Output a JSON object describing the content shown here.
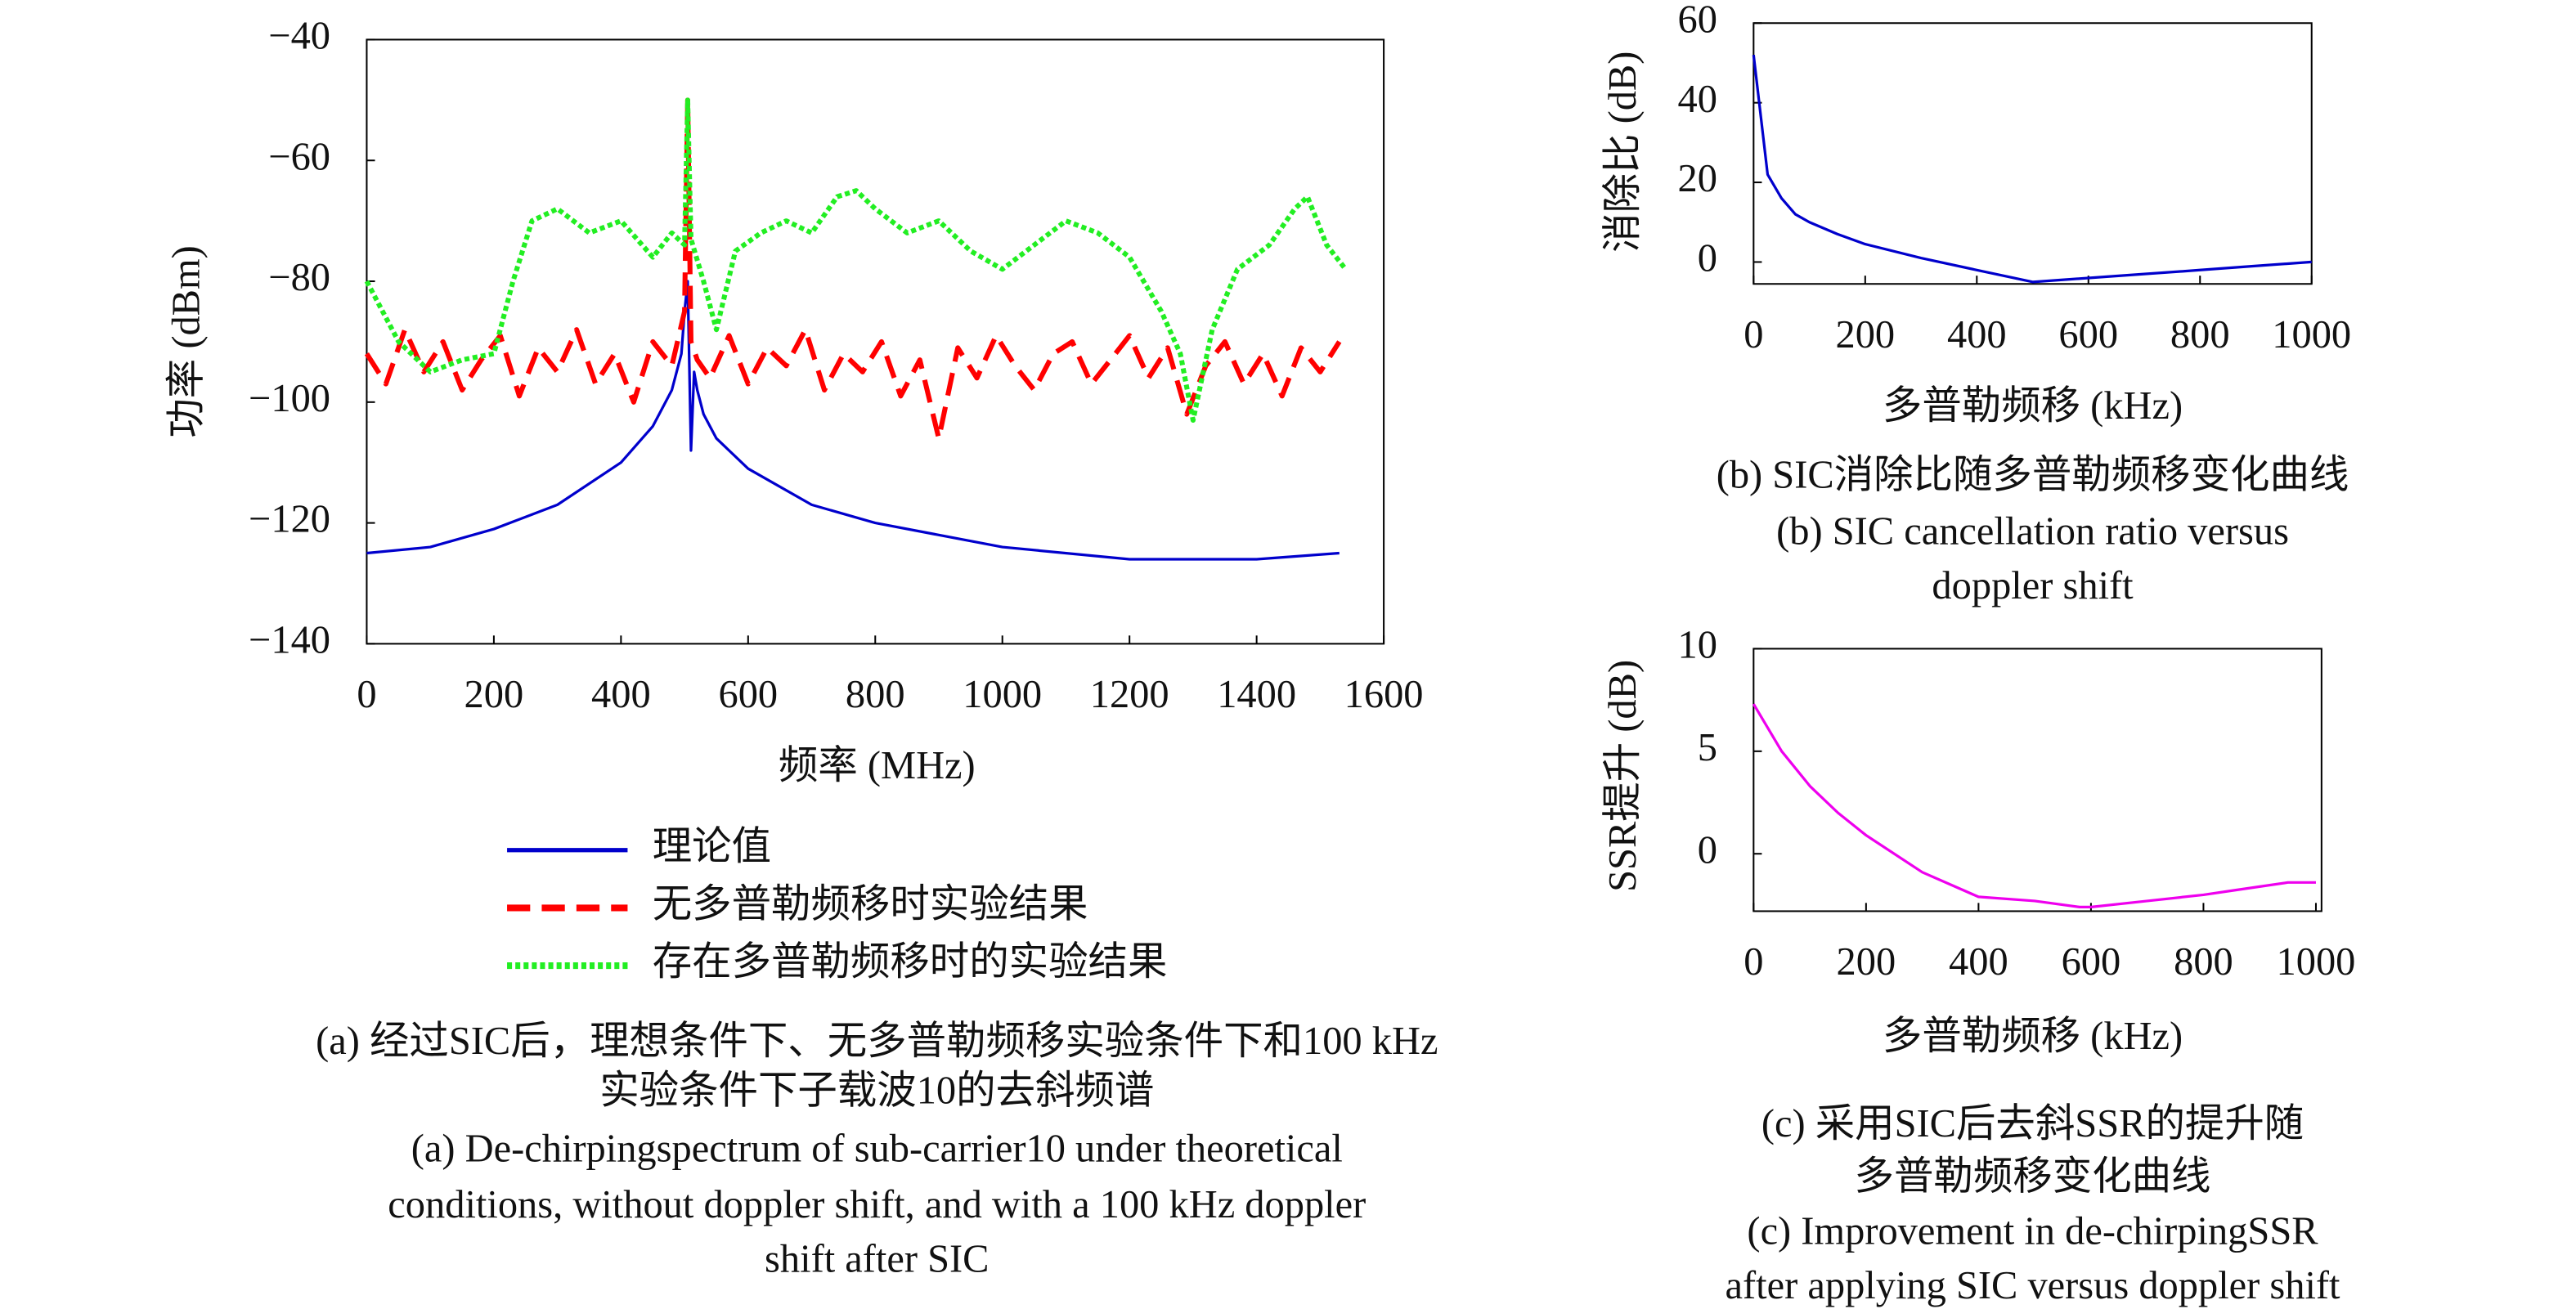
{
  "chart_data": [
    {
      "type": "line",
      "xlabel": "频率 (MHz)",
      "ylabel": "功率 (dBm)",
      "xlim": [
        0,
        1600
      ],
      "ylim": [
        -140,
        -40
      ],
      "xticks": [
        0,
        200,
        400,
        600,
        800,
        1000,
        1200,
        1400,
        1600
      ],
      "yticks": [
        {
          "value": -140,
          "label": "−140"
        },
        {
          "value": -120,
          "label": "−120"
        },
        {
          "value": -100,
          "label": "−100"
        },
        {
          "value": -80,
          "label": "−80"
        },
        {
          "value": -60,
          "label": "−60"
        },
        {
          "value": -40,
          "label": "−40"
        }
      ],
      "legend": "bottom",
      "series": [
        {
          "name": "理论值",
          "color": "#0000cc",
          "style": "solid",
          "x": [
            0,
            100,
            200,
            300,
            400,
            450,
            480,
            495,
            500,
            505,
            510,
            515,
            520,
            530,
            550,
            600,
            700,
            800,
            1000,
            1200,
            1400,
            1530
          ],
          "values": [
            -125,
            -124,
            -121,
            -117,
            -110,
            -104,
            -98,
            -92,
            -85,
            -80,
            -108,
            -95,
            -98,
            -102,
            -106,
            -111,
            -117,
            -120,
            -124,
            -126,
            -126,
            -125
          ]
        },
        {
          "name": "无多普勒频移时实验结果",
          "color": "#ff0000",
          "style": "dashed",
          "x": [
            0,
            30,
            60,
            90,
            120,
            150,
            180,
            210,
            240,
            270,
            300,
            330,
            360,
            390,
            420,
            450,
            480,
            500,
            505,
            510,
            520,
            540,
            570,
            600,
            630,
            660,
            690,
            720,
            750,
            780,
            810,
            840,
            870,
            900,
            930,
            960,
            990,
            1020,
            1050,
            1080,
            1110,
            1140,
            1170,
            1200,
            1230,
            1260,
            1290,
            1320,
            1350,
            1380,
            1410,
            1440,
            1470,
            1500,
            1530
          ],
          "values": [
            -92,
            -97,
            -88,
            -95,
            -90,
            -98,
            -93,
            -89,
            -99,
            -91,
            -95,
            -88,
            -97,
            -92,
            -100,
            -90,
            -94,
            -85,
            -50,
            -90,
            -93,
            -96,
            -89,
            -97,
            -91,
            -94,
            -88,
            -98,
            -92,
            -95,
            -90,
            -99,
            -93,
            -106,
            -91,
            -96,
            -89,
            -94,
            -98,
            -92,
            -90,
            -97,
            -93,
            -89,
            -96,
            -91,
            -102,
            -94,
            -90,
            -97,
            -92,
            -99,
            -91,
            -95,
            -90
          ]
        },
        {
          "name": "存在多普勒频移时的实验结果",
          "color": "#22ee22",
          "style": "dotted",
          "x": [
            0,
            50,
            100,
            150,
            200,
            230,
            260,
            300,
            350,
            400,
            450,
            480,
            500,
            505,
            510,
            530,
            550,
            580,
            620,
            660,
            700,
            740,
            770,
            800,
            850,
            900,
            950,
            1000,
            1050,
            1100,
            1150,
            1200,
            1250,
            1280,
            1300,
            1330,
            1370,
            1420,
            1460,
            1480,
            1510,
            1540
          ],
          "values": [
            -80,
            -90,
            -95,
            -93,
            -92,
            -80,
            -70,
            -68,
            -72,
            -70,
            -76,
            -72,
            -74,
            -50,
            -73,
            -80,
            -88,
            -75,
            -72,
            -70,
            -72,
            -66,
            -65,
            -68,
            -72,
            -70,
            -75,
            -78,
            -74,
            -70,
            -72,
            -76,
            -85,
            -92,
            -103,
            -88,
            -78,
            -74,
            -68,
            -66,
            -74,
            -78
          ]
        }
      ],
      "caption": [
        "(a) 经过SIC后，理想条件下、无多普勒频移实验条件下和100 kHz",
        "实验条件下子载波10的去斜频谱",
        "(a) De-chirpingspectrum of sub-carrier10 under theoretical",
        "conditions, without doppler shift, and with a 100 kHz doppler",
        "shift after SIC"
      ]
    },
    {
      "type": "line",
      "xlabel": "多普勒频移 (kHz)",
      "ylabel": "消除比 (dB)",
      "xlim": [
        0,
        1000
      ],
      "ylim": [
        -5.5,
        60
      ],
      "xticks": [
        0,
        200,
        400,
        600,
        800,
        1000
      ],
      "yticks": [
        0,
        20,
        40,
        60
      ],
      "series": [
        {
          "color": "#0000cc",
          "x": [
            0,
            10,
            25,
            50,
            75,
            100,
            150,
            200,
            300,
            400,
            500,
            600,
            700,
            800,
            900,
            1000
          ],
          "values": [
            52,
            40,
            22,
            16,
            12,
            10,
            7,
            4.5,
            1,
            -2,
            -5,
            -4,
            -3,
            -2,
            -1,
            0
          ]
        }
      ],
      "caption": [
        "(b) SIC消除比随多普勒频移变化曲线",
        "(b) SIC cancellation ratio versus",
        "doppler shift"
      ]
    },
    {
      "type": "line",
      "xlabel": "多普勒频移 (kHz)",
      "ylabel": "SSR提升 (dB)",
      "xlim": [
        0,
        1010
      ],
      "ylim": [
        -2.8,
        10
      ],
      "xticks": [
        0,
        200,
        400,
        600,
        800,
        1000
      ],
      "yticks": [
        0,
        5,
        10
      ],
      "series": [
        {
          "color": "#ee00ee",
          "x": [
            0,
            50,
            100,
            150,
            200,
            300,
            400,
            500,
            580,
            600,
            700,
            800,
            850,
            900,
            950,
            1000
          ],
          "values": [
            7.3,
            5,
            3.3,
            2,
            0.9,
            -0.9,
            -2.1,
            -2.3,
            -2.6,
            -2.6,
            -2.3,
            -2,
            -1.8,
            -1.6,
            -1.4,
            -1.4
          ]
        }
      ],
      "caption": [
        "(c) 采用SIC后去斜SSR的提升随",
        "多普勒频移变化曲线",
        "(c) Improvement in de-chirpingSSR",
        "after applying SIC versus doppler shift"
      ]
    }
  ]
}
